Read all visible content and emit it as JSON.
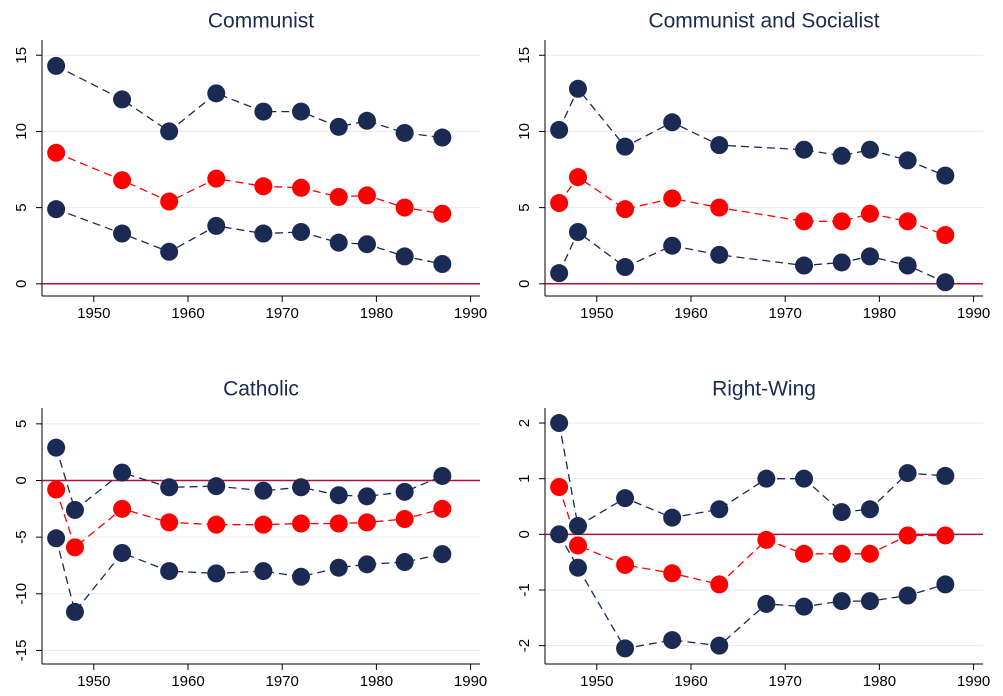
{
  "chart_data": [
    {
      "type": "line",
      "title": "Communist",
      "x": [
        1946,
        1953,
        1958,
        1963,
        1968,
        1972,
        1976,
        1979,
        1983,
        1987
      ],
      "series": [
        {
          "color": "#1a2a52",
          "values": [
            14.3,
            12.1,
            10.0,
            12.5,
            11.3,
            11.3,
            10.3,
            10.7,
            9.9,
            9.6
          ]
        },
        {
          "color": "#ff0000",
          "values": [
            8.6,
            6.8,
            5.4,
            6.9,
            6.4,
            6.3,
            5.7,
            5.8,
            5.0,
            4.6
          ]
        },
        {
          "color": "#1a2a52",
          "values": [
            4.9,
            3.3,
            2.1,
            3.8,
            3.3,
            3.4,
            2.7,
            2.6,
            1.8,
            1.3
          ]
        }
      ],
      "xlim": [
        1944.5,
        1991
      ],
      "xticks": [
        1950,
        1960,
        1970,
        1980,
        1990
      ],
      "ylim": [
        -0.8,
        16
      ],
      "yticks": [
        0,
        5,
        10,
        15
      ],
      "grid": true,
      "reference_line": 0
    },
    {
      "type": "line",
      "title": "Communist and Socialist",
      "x": [
        1946,
        1948,
        1953,
        1958,
        1963,
        1972,
        1976,
        1979,
        1983,
        1987
      ],
      "series": [
        {
          "color": "#1a2a52",
          "values": [
            10.1,
            12.8,
            9.0,
            10.6,
            9.1,
            8.8,
            8.4,
            8.8,
            8.1,
            7.1
          ]
        },
        {
          "color": "#ff0000",
          "values": [
            5.3,
            7.0,
            4.9,
            5.6,
            5.0,
            4.1,
            4.1,
            4.6,
            4.1,
            3.2
          ]
        },
        {
          "color": "#1a2a52",
          "values": [
            0.7,
            3.4,
            1.1,
            2.5,
            1.9,
            1.2,
            1.4,
            1.8,
            1.2,
            0.1
          ]
        }
      ],
      "xlim": [
        1944.5,
        1991
      ],
      "xticks": [
        1950,
        1960,
        1970,
        1980,
        1990
      ],
      "ylim": [
        -0.8,
        16
      ],
      "yticks": [
        0,
        5,
        10,
        15
      ],
      "grid": true,
      "reference_line": 0
    },
    {
      "type": "line",
      "title": "Catholic",
      "x": [
        1946,
        1948,
        1953,
        1958,
        1963,
        1968,
        1972,
        1976,
        1979,
        1983,
        1987
      ],
      "series": [
        {
          "color": "#1a2a52",
          "values": [
            2.9,
            -2.6,
            0.7,
            -0.6,
            -0.5,
            -0.9,
            -0.6,
            -1.3,
            -1.4,
            -1.0,
            0.4
          ]
        },
        {
          "color": "#ff0000",
          "values": [
            -0.8,
            -5.9,
            -2.5,
            -3.7,
            -3.9,
            -3.9,
            -3.8,
            -3.8,
            -3.7,
            -3.4,
            -2.5
          ]
        },
        {
          "color": "#1a2a52",
          "values": [
            -5.1,
            -11.6,
            -6.4,
            -8.0,
            -8.2,
            -8.0,
            -8.5,
            -7.7,
            -7.4,
            -7.2,
            -6.5
          ]
        }
      ],
      "xlim": [
        1944.5,
        1991
      ],
      "xticks": [
        1950,
        1960,
        1970,
        1980,
        1990
      ],
      "ylim": [
        -16.2,
        6.4
      ],
      "yticks": [
        5,
        0,
        -5,
        -10,
        -15
      ],
      "grid": true,
      "reference_line": 0
    },
    {
      "type": "line",
      "title": "Right-Wing",
      "x": [
        1946,
        1948,
        1953,
        1958,
        1963,
        1968,
        1972,
        1976,
        1979,
        1983,
        1987
      ],
      "series": [
        {
          "color": "#1a2a52",
          "values": [
            2.0,
            0.15,
            0.65,
            0.3,
            0.45,
            1.0,
            1.0,
            0.4,
            0.45,
            1.1,
            1.05
          ]
        },
        {
          "color": "#ff0000",
          "values": [
            0.85,
            -0.2,
            -0.55,
            -0.7,
            -0.9,
            -0.1,
            -0.35,
            -0.35,
            -0.35,
            -0.02,
            -0.02
          ]
        },
        {
          "color": "#1a2a52",
          "values": [
            0.0,
            -0.6,
            -2.05,
            -1.9,
            -2.0,
            -1.25,
            -1.3,
            -1.2,
            -1.2,
            -1.1,
            -0.9
          ]
        }
      ],
      "xlim": [
        1944.5,
        1991
      ],
      "xticks": [
        1950,
        1960,
        1970,
        1980,
        1990
      ],
      "ylim": [
        -2.33,
        2.27
      ],
      "yticks": [
        2,
        1,
        0,
        -1,
        -2
      ],
      "grid": true,
      "reference_line": 0
    }
  ]
}
